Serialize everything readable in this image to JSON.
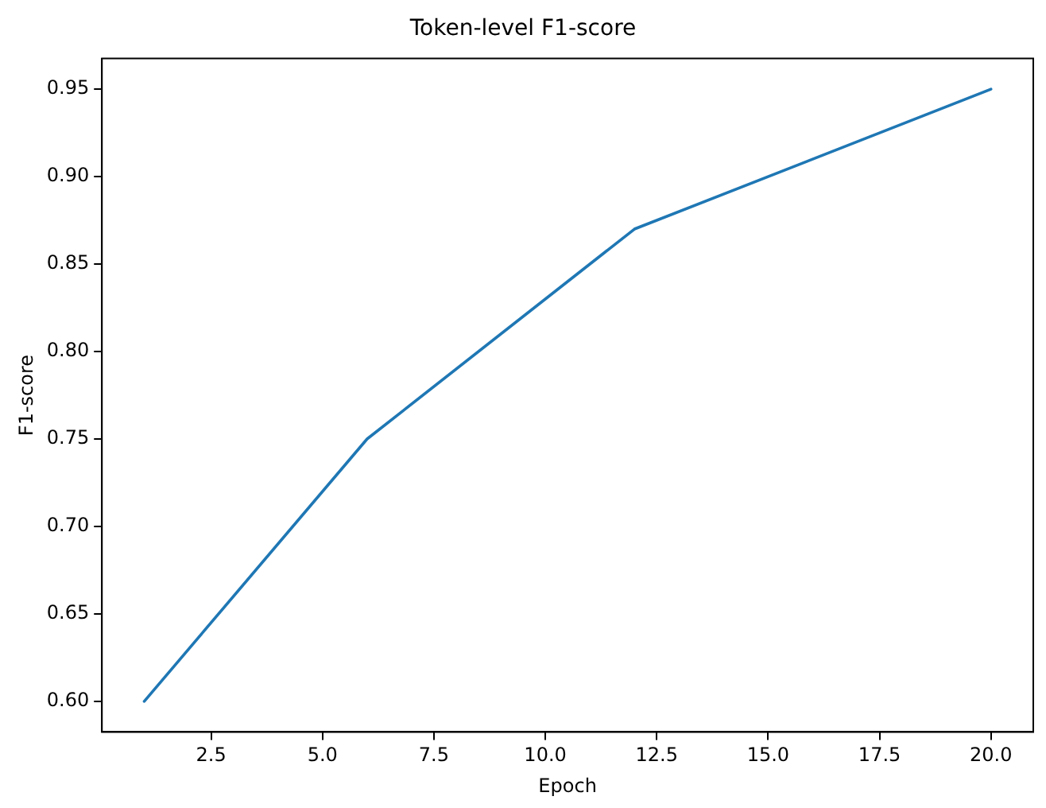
{
  "chart_data": {
    "type": "line",
    "title": "Token-level F1-score",
    "xlabel": "Epoch",
    "ylabel": "F1-score",
    "x": [
      1,
      6,
      12,
      20
    ],
    "series": [
      {
        "color": "#1f77b4",
        "values": [
          0.6,
          0.75,
          0.87,
          0.95
        ]
      }
    ],
    "xlim": [
      0.05,
      20.95
    ],
    "ylim": [
      0.5825,
      0.9675
    ],
    "xticks": [
      2.5,
      {
        "value": 5,
        "label": "5.0"
      },
      7.5,
      {
        "value": 10,
        "label": "10.0"
      },
      12.5,
      {
        "value": 15,
        "label": "15.0"
      },
      17.5,
      {
        "value": 20,
        "label": "20.0"
      }
    ],
    "yticks": [
      {
        "value": 0.6,
        "label": "0.60"
      },
      0.65,
      {
        "value": 0.7,
        "label": "0.70"
      },
      0.75,
      {
        "value": 0.8,
        "label": "0.80"
      },
      0.85,
      {
        "value": 0.9,
        "label": "0.90"
      },
      0.95
    ],
    "grid": false,
    "legend": false,
    "marker": "none",
    "line_style": "solid"
  }
}
